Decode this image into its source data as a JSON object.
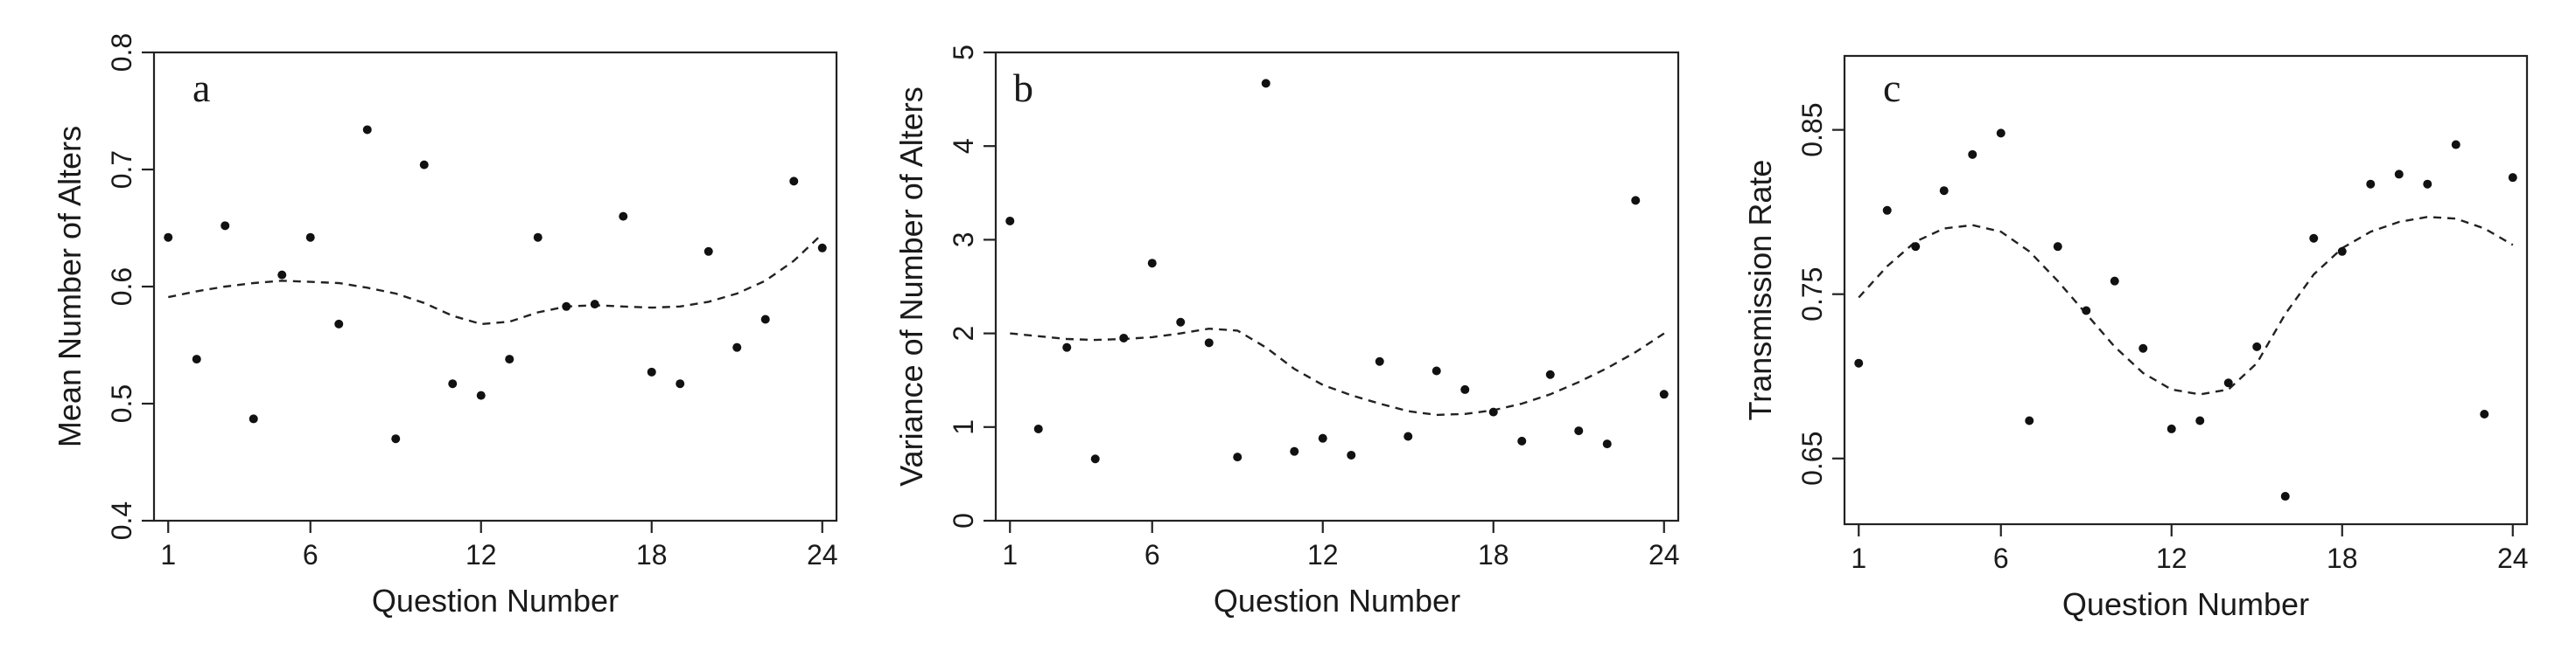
{
  "chart_data": [
    {
      "type": "scatter",
      "panel_label": "a",
      "xlabel": "Question Number",
      "ylabel": "Mean Number of Alters",
      "xlim": [
        0.5,
        24.5
      ],
      "ylim": [
        0.4,
        0.8
      ],
      "xticks": [
        1,
        6,
        12,
        18,
        24
      ],
      "yticks": [
        0.4,
        0.5,
        0.6,
        0.7,
        0.8
      ],
      "ytick_labels": [
        "0.4",
        "0.5",
        "0.6",
        "0.7",
        "0.8"
      ],
      "grid": false,
      "points": [
        {
          "x": 1,
          "y": 0.642
        },
        {
          "x": 2,
          "y": 0.538
        },
        {
          "x": 3,
          "y": 0.652
        },
        {
          "x": 4,
          "y": 0.487
        },
        {
          "x": 5,
          "y": 0.61
        },
        {
          "x": 6,
          "y": 0.642
        },
        {
          "x": 7,
          "y": 0.568
        },
        {
          "x": 8,
          "y": 0.734
        },
        {
          "x": 9,
          "y": 0.47
        },
        {
          "x": 10,
          "y": 0.704
        },
        {
          "x": 11,
          "y": 0.517
        },
        {
          "x": 12,
          "y": 0.507
        },
        {
          "x": 13,
          "y": 0.538
        },
        {
          "x": 14,
          "y": 0.642
        },
        {
          "x": 15,
          "y": 0.583
        },
        {
          "x": 16,
          "y": 0.585
        },
        {
          "x": 17,
          "y": 0.66
        },
        {
          "x": 18,
          "y": 0.527
        },
        {
          "x": 19,
          "y": 0.517
        },
        {
          "x": 20,
          "y": 0.63
        },
        {
          "x": 21,
          "y": 0.548
        },
        {
          "x": 22,
          "y": 0.572
        },
        {
          "x": 23,
          "y": 0.69
        },
        {
          "x": 24,
          "y": 0.633
        }
      ],
      "smooth_line": [
        {
          "x": 1,
          "y": 0.591
        },
        {
          "x": 2,
          "y": 0.596
        },
        {
          "x": 3,
          "y": 0.6
        },
        {
          "x": 4,
          "y": 0.603
        },
        {
          "x": 5,
          "y": 0.605
        },
        {
          "x": 6,
          "y": 0.604
        },
        {
          "x": 7,
          "y": 0.603
        },
        {
          "x": 8,
          "y": 0.599
        },
        {
          "x": 9,
          "y": 0.594
        },
        {
          "x": 10,
          "y": 0.586
        },
        {
          "x": 11,
          "y": 0.575
        },
        {
          "x": 12,
          "y": 0.568
        },
        {
          "x": 13,
          "y": 0.57
        },
        {
          "x": 14,
          "y": 0.578
        },
        {
          "x": 15,
          "y": 0.583
        },
        {
          "x": 16,
          "y": 0.584
        },
        {
          "x": 17,
          "y": 0.583
        },
        {
          "x": 18,
          "y": 0.582
        },
        {
          "x": 19,
          "y": 0.583
        },
        {
          "x": 20,
          "y": 0.587
        },
        {
          "x": 21,
          "y": 0.594
        },
        {
          "x": 22,
          "y": 0.605
        },
        {
          "x": 23,
          "y": 0.622
        },
        {
          "x": 24,
          "y": 0.645
        }
      ]
    },
    {
      "type": "scatter",
      "panel_label": "b",
      "xlabel": "Question Number",
      "ylabel": "Variance of Number of Alters",
      "xlim": [
        0.5,
        24.5
      ],
      "ylim": [
        0,
        5
      ],
      "xticks": [
        1,
        6,
        12,
        18,
        24
      ],
      "yticks": [
        0,
        1,
        2,
        3,
        4,
        5
      ],
      "ytick_labels": [
        "0",
        "1",
        "2",
        "3",
        "4",
        "5"
      ],
      "grid": false,
      "points": [
        {
          "x": 1,
          "y": 3.2
        },
        {
          "x": 2,
          "y": 0.98
        },
        {
          "x": 3,
          "y": 1.85
        },
        {
          "x": 4,
          "y": 0.66
        },
        {
          "x": 5,
          "y": 1.95
        },
        {
          "x": 6,
          "y": 2.75
        },
        {
          "x": 7,
          "y": 2.12
        },
        {
          "x": 8,
          "y": 1.9
        },
        {
          "x": 9,
          "y": 0.68
        },
        {
          "x": 10,
          "y": 4.67
        },
        {
          "x": 11,
          "y": 0.74
        },
        {
          "x": 12,
          "y": 0.88
        },
        {
          "x": 13,
          "y": 0.7
        },
        {
          "x": 14,
          "y": 1.7
        },
        {
          "x": 15,
          "y": 0.9
        },
        {
          "x": 16,
          "y": 1.6
        },
        {
          "x": 17,
          "y": 1.4
        },
        {
          "x": 18,
          "y": 1.16
        },
        {
          "x": 19,
          "y": 0.85
        },
        {
          "x": 20,
          "y": 1.56
        },
        {
          "x": 21,
          "y": 0.96
        },
        {
          "x": 22,
          "y": 0.82
        },
        {
          "x": 23,
          "y": 3.42
        },
        {
          "x": 24,
          "y": 1.35
        }
      ],
      "smooth_line": [
        {
          "x": 1,
          "y": 2.0
        },
        {
          "x": 2,
          "y": 1.97
        },
        {
          "x": 3,
          "y": 1.94
        },
        {
          "x": 4,
          "y": 1.93
        },
        {
          "x": 5,
          "y": 1.94
        },
        {
          "x": 6,
          "y": 1.96
        },
        {
          "x": 7,
          "y": 2.0
        },
        {
          "x": 8,
          "y": 2.05
        },
        {
          "x": 9,
          "y": 2.03
        },
        {
          "x": 10,
          "y": 1.85
        },
        {
          "x": 11,
          "y": 1.62
        },
        {
          "x": 12,
          "y": 1.45
        },
        {
          "x": 13,
          "y": 1.34
        },
        {
          "x": 14,
          "y": 1.25
        },
        {
          "x": 15,
          "y": 1.17
        },
        {
          "x": 16,
          "y": 1.13
        },
        {
          "x": 17,
          "y": 1.14
        },
        {
          "x": 18,
          "y": 1.18
        },
        {
          "x": 19,
          "y": 1.25
        },
        {
          "x": 20,
          "y": 1.35
        },
        {
          "x": 21,
          "y": 1.48
        },
        {
          "x": 22,
          "y": 1.63
        },
        {
          "x": 23,
          "y": 1.8
        },
        {
          "x": 24,
          "y": 2.0
        }
      ]
    },
    {
      "type": "scatter",
      "panel_label": "c",
      "xlabel": "Question Number",
      "ylabel": "Transmission Rate",
      "xlim": [
        0.5,
        24.5
      ],
      "ylim": [
        0.61,
        0.895
      ],
      "xticks": [
        1,
        6,
        12,
        18,
        24
      ],
      "yticks": [
        0.65,
        0.75,
        0.85
      ],
      "ytick_labels": [
        "0.65",
        "0.75",
        "0.85"
      ],
      "grid": false,
      "points": [
        {
          "x": 1,
          "y": 0.708
        },
        {
          "x": 2,
          "y": 0.801
        },
        {
          "x": 3,
          "y": 0.779
        },
        {
          "x": 4,
          "y": 0.813
        },
        {
          "x": 5,
          "y": 0.835
        },
        {
          "x": 6,
          "y": 0.848
        },
        {
          "x": 7,
          "y": 0.673
        },
        {
          "x": 8,
          "y": 0.779
        },
        {
          "x": 9,
          "y": 0.74
        },
        {
          "x": 10,
          "y": 0.758
        },
        {
          "x": 11,
          "y": 0.717
        },
        {
          "x": 12,
          "y": 0.668
        },
        {
          "x": 13,
          "y": 0.673
        },
        {
          "x": 14,
          "y": 0.696
        },
        {
          "x": 15,
          "y": 0.718
        },
        {
          "x": 16,
          "y": 0.627
        },
        {
          "x": 17,
          "y": 0.784
        },
        {
          "x": 18,
          "y": 0.776
        },
        {
          "x": 19,
          "y": 0.817
        },
        {
          "x": 20,
          "y": 0.823
        },
        {
          "x": 21,
          "y": 0.817
        },
        {
          "x": 22,
          "y": 0.841
        },
        {
          "x": 23,
          "y": 0.677
        },
        {
          "x": 24,
          "y": 0.821
        }
      ],
      "smooth_line": [
        {
          "x": 1,
          "y": 0.748
        },
        {
          "x": 2,
          "y": 0.767
        },
        {
          "x": 3,
          "y": 0.782
        },
        {
          "x": 4,
          "y": 0.79
        },
        {
          "x": 5,
          "y": 0.792
        },
        {
          "x": 6,
          "y": 0.788
        },
        {
          "x": 7,
          "y": 0.776
        },
        {
          "x": 8,
          "y": 0.758
        },
        {
          "x": 9,
          "y": 0.738
        },
        {
          "x": 10,
          "y": 0.718
        },
        {
          "x": 11,
          "y": 0.702
        },
        {
          "x": 12,
          "y": 0.692
        },
        {
          "x": 13,
          "y": 0.689
        },
        {
          "x": 14,
          "y": 0.692
        },
        {
          "x": 15,
          "y": 0.708
        },
        {
          "x": 16,
          "y": 0.738
        },
        {
          "x": 17,
          "y": 0.762
        },
        {
          "x": 18,
          "y": 0.778
        },
        {
          "x": 19,
          "y": 0.788
        },
        {
          "x": 20,
          "y": 0.794
        },
        {
          "x": 21,
          "y": 0.797
        },
        {
          "x": 22,
          "y": 0.796
        },
        {
          "x": 23,
          "y": 0.79
        },
        {
          "x": 24,
          "y": 0.78
        }
      ]
    }
  ]
}
